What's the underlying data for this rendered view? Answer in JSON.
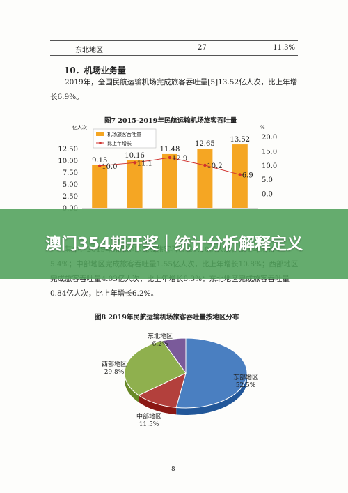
{
  "table_row": {
    "region": "东北地区",
    "value": "27",
    "pct": "11.3%"
  },
  "section_title": "10．机场业务量",
  "paragraph1": "2019年，全国民航运输机场完成旅客吞吐量[5]13.52亿人次，比上年增长6.9%。",
  "figure7_title": "图7  2015-2019年民航运输机场旅客吞吐量",
  "chart_data": [
    {
      "type": "bar",
      "title": "图7  2015-2019年民航运输机场旅客吞吐量",
      "categories": [
        "2015",
        "2016",
        "2017",
        "2018",
        "2019"
      ],
      "series": [
        {
          "name": "机场旅客吞吐量",
          "values": [
            9.15,
            10.16,
            11.48,
            12.65,
            13.52
          ],
          "color": "#f5a623"
        },
        {
          "name": "比上年增长",
          "values": [
            10.0,
            11.1,
            12.9,
            10.2,
            6.9
          ],
          "color": "#d0312d"
        }
      ],
      "ylabel_left": "亿人次",
      "ylabel_right": "%",
      "y_left_ticks": [
        "0.00",
        "2.50",
        "5.00",
        "7.50",
        "10.00",
        "12.50"
      ],
      "y_right_ticks": [
        "0.0",
        "5.0",
        "10.0",
        "15.0",
        "20.0"
      ],
      "ylim_left": [
        0,
        15
      ],
      "ylim_right": [
        -5,
        20
      ],
      "bar_labels": [
        "9.15",
        "10.16",
        "11.48",
        "12.65",
        "13.52"
      ],
      "line_labels": [
        "10.0",
        "11.1",
        "12.9",
        "10.2",
        "6.9"
      ],
      "legend": "top-left"
    },
    {
      "type": "pie",
      "title": "图8  2019年民航运输机场旅客吞吐量按地区分布",
      "slices": [
        {
          "name": "东部地区",
          "value": 52.5,
          "label": "52.5%",
          "color": "#4a7fc1"
        },
        {
          "name": "中部地区",
          "value": 11.5,
          "label": "11.5%",
          "color": "#b3403c"
        },
        {
          "name": "西部地区",
          "value": 29.8,
          "label": "29.8%",
          "color": "#8fb04e"
        },
        {
          "name": "东北地区",
          "value": 6.2,
          "label": "6.2%",
          "color": "#7a5a9a"
        }
      ]
    }
  ],
  "banner_text": "澳门354期开奖｜统计分析解释定义",
  "paragraph2": "其中：2019年东部地区完成旅客吞吐量7.10亿人次，比上年增长5.4%；中部地区完成旅客吞吐量1.55亿人次，比上年增长10.8%；西部地区完成旅客吞吐量4.03亿人次，比上年增长8.3%；东北地区完成旅客吞吐量0.84亿人次，比上年增长6.2%。",
  "figure8_title": "图8  2019年民航运输机场旅客吞吐量按地区分布",
  "page_number": "8"
}
